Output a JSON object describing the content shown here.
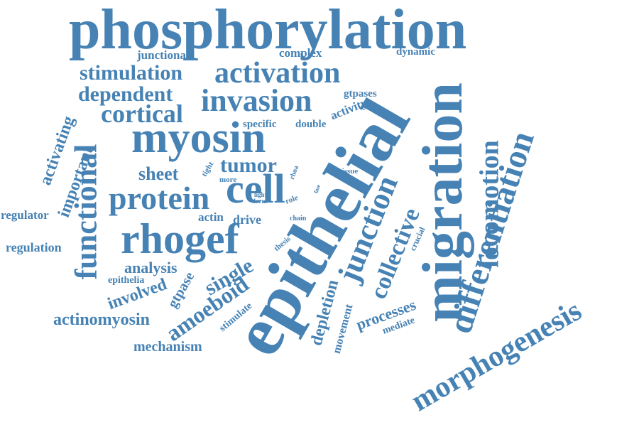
{
  "color": "#4682b4",
  "words": [
    {
      "key": "phosphorylation",
      "text": "phosphorylation"
    },
    {
      "key": "epithelial",
      "text": "epithelial"
    },
    {
      "key": "migration",
      "text": "migration"
    },
    {
      "key": "myosin",
      "text": "myosin"
    },
    {
      "key": "rhogef",
      "text": "rhogef"
    },
    {
      "key": "cell",
      "text": "cell"
    },
    {
      "key": "differentiation",
      "text": "differentiation"
    },
    {
      "key": "morphogenesis",
      "text": "morphogenesis"
    },
    {
      "key": "invasion",
      "text": "invasion"
    },
    {
      "key": "activation",
      "text": "activation"
    },
    {
      "key": "protein",
      "text": "protein"
    },
    {
      "key": "functional",
      "text": "functional"
    },
    {
      "key": "junction",
      "text": "junction"
    },
    {
      "key": "locomotion",
      "text": "locomotion"
    },
    {
      "key": "cortical",
      "text": "cortical"
    },
    {
      "key": "stimulation",
      "text": "stimulation"
    },
    {
      "key": "dependent",
      "text": "dependent"
    },
    {
      "key": "collective",
      "text": "collective"
    },
    {
      "key": "amoeboid",
      "text": "amoeboid"
    },
    {
      "key": "single",
      "text": "single"
    },
    {
      "key": "tumor",
      "text": "tumor"
    },
    {
      "key": "sheet",
      "text": "sheet"
    },
    {
      "key": "actinomyosin",
      "text": "actinomyosin"
    },
    {
      "key": "involved",
      "text": "involved"
    },
    {
      "key": "analysis",
      "text": "analysis"
    },
    {
      "key": "mechanism",
      "text": "mechanism"
    },
    {
      "key": "depletion",
      "text": "depletion"
    },
    {
      "key": "processes",
      "text": "processes"
    },
    {
      "key": "activating",
      "text": "activating"
    },
    {
      "key": "important",
      "text": "important"
    },
    {
      "key": "regulation",
      "text": "regulation"
    },
    {
      "key": "regulator",
      "text": "regulator"
    },
    {
      "key": "gtpase",
      "text": "gtpase"
    },
    {
      "key": "junctional",
      "text": "junctional"
    },
    {
      "key": "complex",
      "text": "complex"
    },
    {
      "key": "dynamic",
      "text": "dynamic"
    },
    {
      "key": "gtpases",
      "text": "gtpases"
    },
    {
      "key": "activity",
      "text": "activity"
    },
    {
      "key": "specific",
      "text": "specific"
    },
    {
      "key": "double",
      "text": "double"
    },
    {
      "key": "actin",
      "text": "actin"
    },
    {
      "key": "drive",
      "text": "drive"
    },
    {
      "key": "movement",
      "text": "movement"
    },
    {
      "key": "epithelia",
      "text": "epithelia"
    },
    {
      "key": "stimulate",
      "text": "stimulate"
    },
    {
      "key": "mediate",
      "text": "mediate"
    },
    {
      "key": "crucial",
      "text": "crucial"
    },
    {
      "key": "tight",
      "text": "tight"
    },
    {
      "key": "more",
      "text": "more"
    },
    {
      "key": "rhoa",
      "text": "rhoa"
    },
    {
      "key": "tissue",
      "text": "tissue"
    },
    {
      "key": "light",
      "text": "light"
    },
    {
      "key": "form",
      "text": "form"
    },
    {
      "key": "role",
      "text": "role"
    },
    {
      "key": "line",
      "text": "line"
    },
    {
      "key": "chain",
      "text": "chain"
    },
    {
      "key": "thesis",
      "text": "thesis"
    }
  ]
}
